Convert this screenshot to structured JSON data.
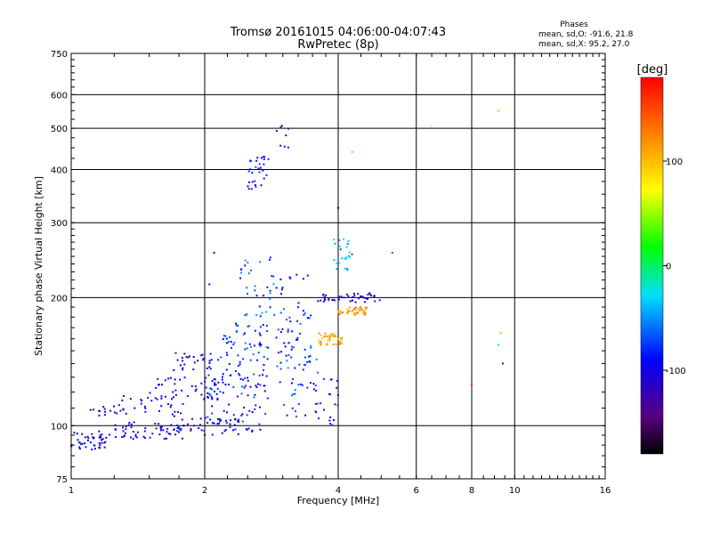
{
  "chart_data": {
    "type": "scatter",
    "title": "Tromsø 20161015 04:06:00-04:07:43",
    "subtitle": "RwPretec (8p)",
    "xlabel": "Frequency [MHz]",
    "ylabel": "Stationary phase Virtual Height [km]",
    "x_scale": "log2",
    "y_scale": "log",
    "xlim": [
      1,
      16
    ],
    "ylim": [
      75,
      750
    ],
    "x_ticks": [
      1,
      2,
      4,
      6,
      8,
      10,
      16
    ],
    "y_ticks": [
      75,
      100,
      200,
      300,
      400,
      500,
      600,
      750
    ],
    "grid": true,
    "stats": {
      "title": "Phases",
      "line_o": "mean, sd,O: -91.6, 21.8",
      "line_x": "mean, sd,X:  95.2, 27.0"
    },
    "colorbar": {
      "label": "[deg]",
      "range": [
        -180,
        180
      ],
      "ticks": [
        100,
        0,
        -100
      ],
      "colormap": "rainbow: black-purple-blue-cyan-green-yellow-orange-red"
    },
    "clusters": [
      {
        "x_range": [
          1.0,
          1.2
        ],
        "y_range": [
          87,
          97
        ],
        "n": 45,
        "phase": -100
      },
      {
        "x_range": [
          1.2,
          1.8
        ],
        "y_range": [
          93,
          102
        ],
        "n": 55,
        "phase": -105
      },
      {
        "x_range": [
          1.7,
          2.4
        ],
        "y_range": [
          97,
          105
        ],
        "n": 35,
        "phase": -100
      },
      {
        "x_range": [
          1.1,
          1.3
        ],
        "y_range": [
          105,
          112
        ],
        "n": 15,
        "phase": -110
      },
      {
        "x_range": [
          1.3,
          1.8
        ],
        "y_range": [
          105,
          118
        ],
        "n": 30,
        "phase": -100
      },
      {
        "x_range": [
          1.5,
          2.2
        ],
        "y_range": [
          115,
          130
        ],
        "n": 45,
        "phase": -105
      },
      {
        "x_range": [
          1.7,
          2.1
        ],
        "y_range": [
          135,
          150
        ],
        "n": 25,
        "phase": -100
      },
      {
        "x_range": [
          2.0,
          2.8
        ],
        "y_range": [
          95,
          110
        ],
        "n": 35,
        "phase": -90
      },
      {
        "x_range": [
          2.0,
          2.8
        ],
        "y_range": [
          110,
          145
        ],
        "n": 70,
        "phase": -85
      },
      {
        "x_range": [
          2.2,
          2.8
        ],
        "y_range": [
          145,
          175
        ],
        "n": 45,
        "phase": -75
      },
      {
        "x_range": [
          2.4,
          2.9
        ],
        "y_range": [
          180,
          250
        ],
        "n": 35,
        "phase": -65
      },
      {
        "x_range": [
          2.9,
          3.6
        ],
        "y_range": [
          105,
          160
        ],
        "n": 55,
        "phase": -75
      },
      {
        "x_range": [
          2.9,
          3.5
        ],
        "y_range": [
          160,
          230
        ],
        "n": 35,
        "phase": -80
      },
      {
        "x_range": [
          3.5,
          4.0
        ],
        "y_range": [
          100,
          130
        ],
        "n": 25,
        "phase": -95
      },
      {
        "x_range": [
          3.6,
          4.1
        ],
        "y_range": [
          155,
          165
        ],
        "n": 40,
        "phase": 110
      },
      {
        "x_range": [
          4.0,
          4.7
        ],
        "y_range": [
          182,
          190
        ],
        "n": 40,
        "phase": 115
      },
      {
        "x_range": [
          3.6,
          5.0
        ],
        "y_range": [
          195,
          205
        ],
        "n": 45,
        "phase": -105
      },
      {
        "x_range": [
          3.9,
          4.3
        ],
        "y_range": [
          230,
          275
        ],
        "n": 25,
        "phase": -40
      },
      {
        "x_range": [
          2.5,
          2.8
        ],
        "y_range": [
          360,
          430
        ],
        "n": 30,
        "phase": -95
      },
      {
        "x_range": [
          2.9,
          3.1
        ],
        "y_range": [
          450,
          510
        ],
        "n": 8,
        "phase": -110
      }
    ],
    "outliers": [
      {
        "x": 4.3,
        "y": 440,
        "phase": 110
      },
      {
        "x": 6.5,
        "y": 505,
        "phase": 70
      },
      {
        "x": 9.2,
        "y": 550,
        "phase": 40
      },
      {
        "x": 5.3,
        "y": 255,
        "phase": 170
      },
      {
        "x": 9.3,
        "y": 165,
        "phase": 40
      },
      {
        "x": 9.2,
        "y": 155,
        "phase": -10
      },
      {
        "x": 9.4,
        "y": 140,
        "phase": -120
      },
      {
        "x": 8.0,
        "y": 125,
        "phase": 160
      },
      {
        "x": 2.05,
        "y": 215,
        "phase": -90
      },
      {
        "x": 2.1,
        "y": 255,
        "phase": -110
      },
      {
        "x": 4.0,
        "y": 325,
        "phase": -100
      }
    ]
  }
}
